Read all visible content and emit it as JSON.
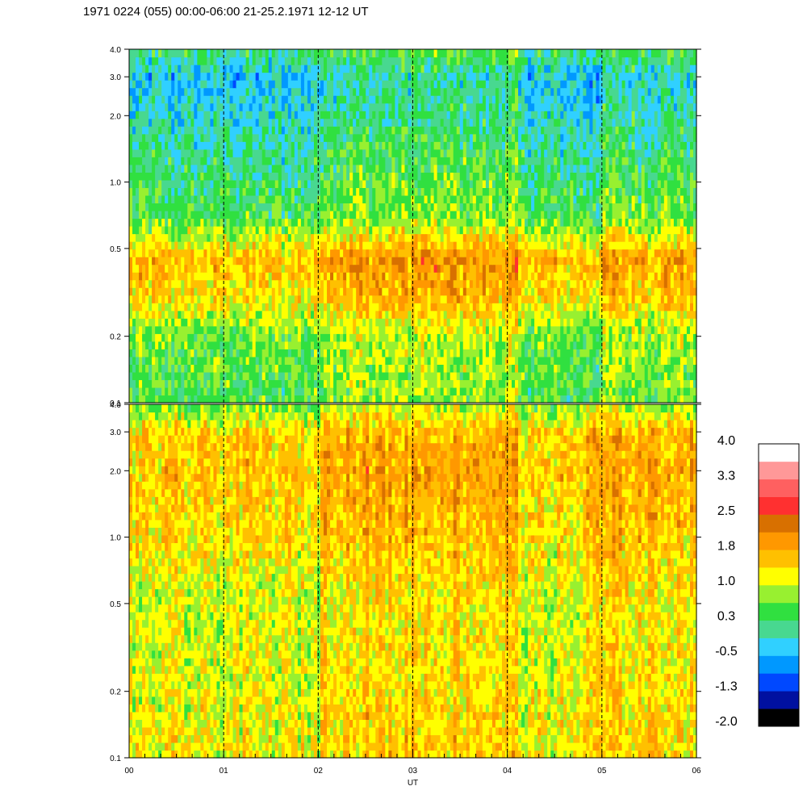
{
  "title": "1971 0224 (055) 00:00-06:00 21-25.2.1971  12-12 UT",
  "chart_data": {
    "type": "heatmap",
    "title": "1971 0224 (055) 00:00-06:00 21-25.2.1971  12-12 UT",
    "xlabel": "UT",
    "ylabel": "",
    "x_ticks": [
      "00",
      "01",
      "02",
      "03",
      "04",
      "05",
      "06"
    ],
    "xlim": [
      0,
      6
    ],
    "y_scale": "log",
    "y_ticks": [
      "0.1",
      "0.2",
      "0.5",
      "1.0",
      "2.0",
      "3.0",
      "4.0"
    ],
    "ylim": [
      0.1,
      4.0
    ],
    "grid": "vertical dashed lines at each hour",
    "panels": [
      {
        "name": "",
        "description_profile": [
          {
            "y": 0.1,
            "value": 0.4
          },
          {
            "y": 0.2,
            "value": 0.6
          },
          {
            "y": 0.3,
            "value": 1.3
          },
          {
            "y": 0.45,
            "value": 1.6
          },
          {
            "y": 0.7,
            "value": 0.4
          },
          {
            "y": 1.5,
            "value": 0.0
          },
          {
            "y": 3.0,
            "value": -0.4
          },
          {
            "y": 4.0,
            "value": 0.2
          }
        ]
      },
      {
        "name": "",
        "description_profile": [
          {
            "y": 0.1,
            "value": 1.2
          },
          {
            "y": 0.2,
            "value": 1.1
          },
          {
            "y": 0.5,
            "value": 1.0
          },
          {
            "y": 1.0,
            "value": 1.3
          },
          {
            "y": 2.0,
            "value": 1.5
          },
          {
            "y": 3.0,
            "value": 1.4
          },
          {
            "y": 4.0,
            "value": 0.6
          }
        ]
      }
    ],
    "colorbar": {
      "labels": [
        "4.0",
        "3.3",
        "2.5",
        "1.8",
        "1.0",
        "0.3",
        "-0.5",
        "-1.3",
        "-2.0"
      ],
      "range": [
        -2.0,
        4.0
      ],
      "colors": [
        "#000000",
        "#0010a0",
        "#0048ff",
        "#0098ff",
        "#30d0ff",
        "#48d890",
        "#30e040",
        "#98f030",
        "#ffff00",
        "#ffc000",
        "#ff9800",
        "#d87000",
        "#ff3030",
        "#ff6060",
        "#ff9898",
        "#ffffff"
      ]
    }
  }
}
